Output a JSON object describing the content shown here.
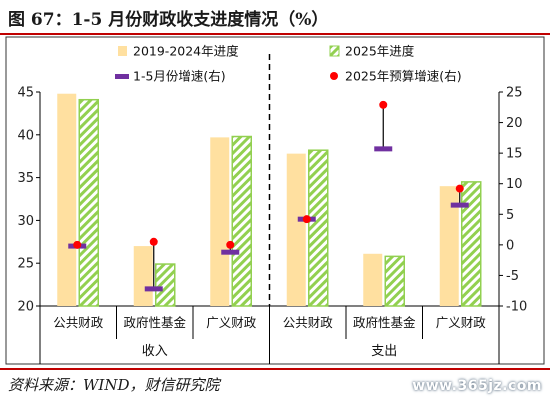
{
  "title": "图 67：1-5 月份财政收支进度情况（%）",
  "source": "资料来源：WIND，财信研究院",
  "watermark": "www.365jz.com",
  "chart_data": {
    "type": "bar",
    "groups": [
      {
        "name": "收入",
        "categories": [
          "公共财政",
          "政府性基金",
          "广义财政"
        ]
      },
      {
        "name": "支出",
        "categories": [
          "公共财政",
          "政府性基金",
          "广义财政"
        ]
      }
    ],
    "left_axis": {
      "min": 20,
      "max": 45,
      "ticks": [
        20,
        25,
        30,
        35,
        40,
        45
      ]
    },
    "right_axis": {
      "min": -10,
      "max": 25,
      "ticks": [
        -10,
        -5,
        0,
        5,
        10,
        15,
        20,
        25
      ]
    },
    "series": [
      {
        "name": "2019-2024年进度",
        "axis": "left",
        "kind": "bar",
        "color": "#ffe0a0",
        "values": [
          44.8,
          27.0,
          39.7,
          37.8,
          26.1,
          34.0
        ]
      },
      {
        "name": "2025年进度",
        "axis": "left",
        "kind": "hatched-bar",
        "color": "#92d050",
        "values": [
          44.1,
          24.9,
          39.8,
          38.2,
          25.8,
          34.5
        ]
      },
      {
        "name": "1-5月份增速(右)",
        "axis": "right",
        "kind": "marker-bar",
        "color": "#7030a0",
        "values": [
          -0.2,
          -7.2,
          -1.2,
          4.2,
          15.7,
          6.5
        ]
      },
      {
        "name": "2025年预算增速(右)",
        "axis": "right",
        "kind": "dot",
        "color": "#ff0000",
        "values": [
          0.0,
          0.5,
          0.0,
          4.2,
          22.9,
          9.2
        ]
      }
    ],
    "legend": [
      "2019-2024年进度",
      "2025年进度",
      "1-5月份增速(右)",
      "2025年预算增速(右)"
    ],
    "legend_position": "top",
    "grid": false
  }
}
